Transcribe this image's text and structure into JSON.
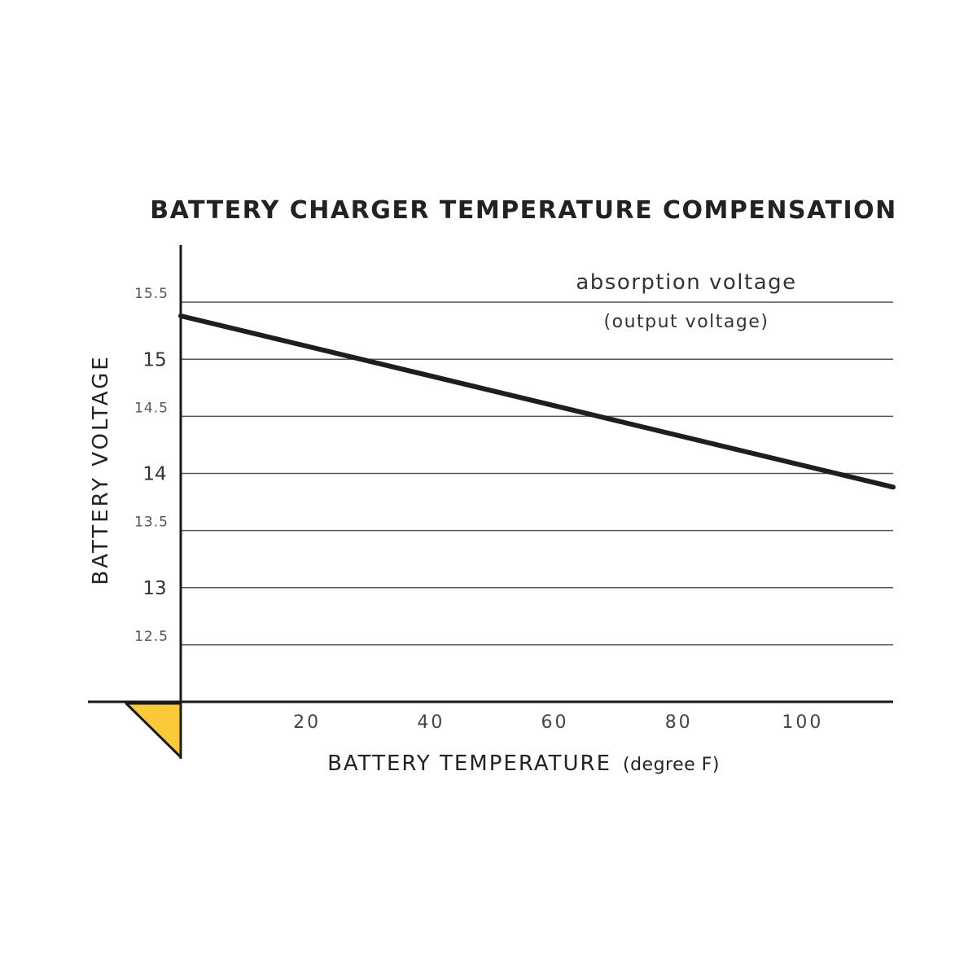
{
  "chart_data": {
    "type": "line",
    "title": "BATTERY CHARGER TEMPERATURE COMPENSATION",
    "xlabel": "BATTERY TEMPERATURE",
    "xlabel_unit": "(degree F)",
    "ylabel": "BATTERY VOLTAGE",
    "xlim": [
      0,
      115
    ],
    "ylim": [
      12,
      16
    ],
    "x_ticks": [
      20,
      40,
      60,
      80,
      100
    ],
    "y_ticks": [
      {
        "value": 12.5,
        "label": "12.5",
        "major": false
      },
      {
        "value": 13,
        "label": "13",
        "major": true
      },
      {
        "value": 13.5,
        "label": "13.5",
        "major": false
      },
      {
        "value": 14,
        "label": "14",
        "major": true
      },
      {
        "value": 14.5,
        "label": "14.5",
        "major": false
      },
      {
        "value": 15,
        "label": "15",
        "major": true
      },
      {
        "value": 15.5,
        "label": "15.5",
        "major": false
      }
    ],
    "grid": true,
    "series": [
      {
        "x": [
          0,
          115
        ],
        "y": [
          15.38,
          13.88
        ]
      }
    ],
    "annotations": [
      "absorption voltage",
      "(output voltage)"
    ],
    "colors": {
      "line": "#1e1e1e",
      "marker": "#f9c93a"
    }
  }
}
